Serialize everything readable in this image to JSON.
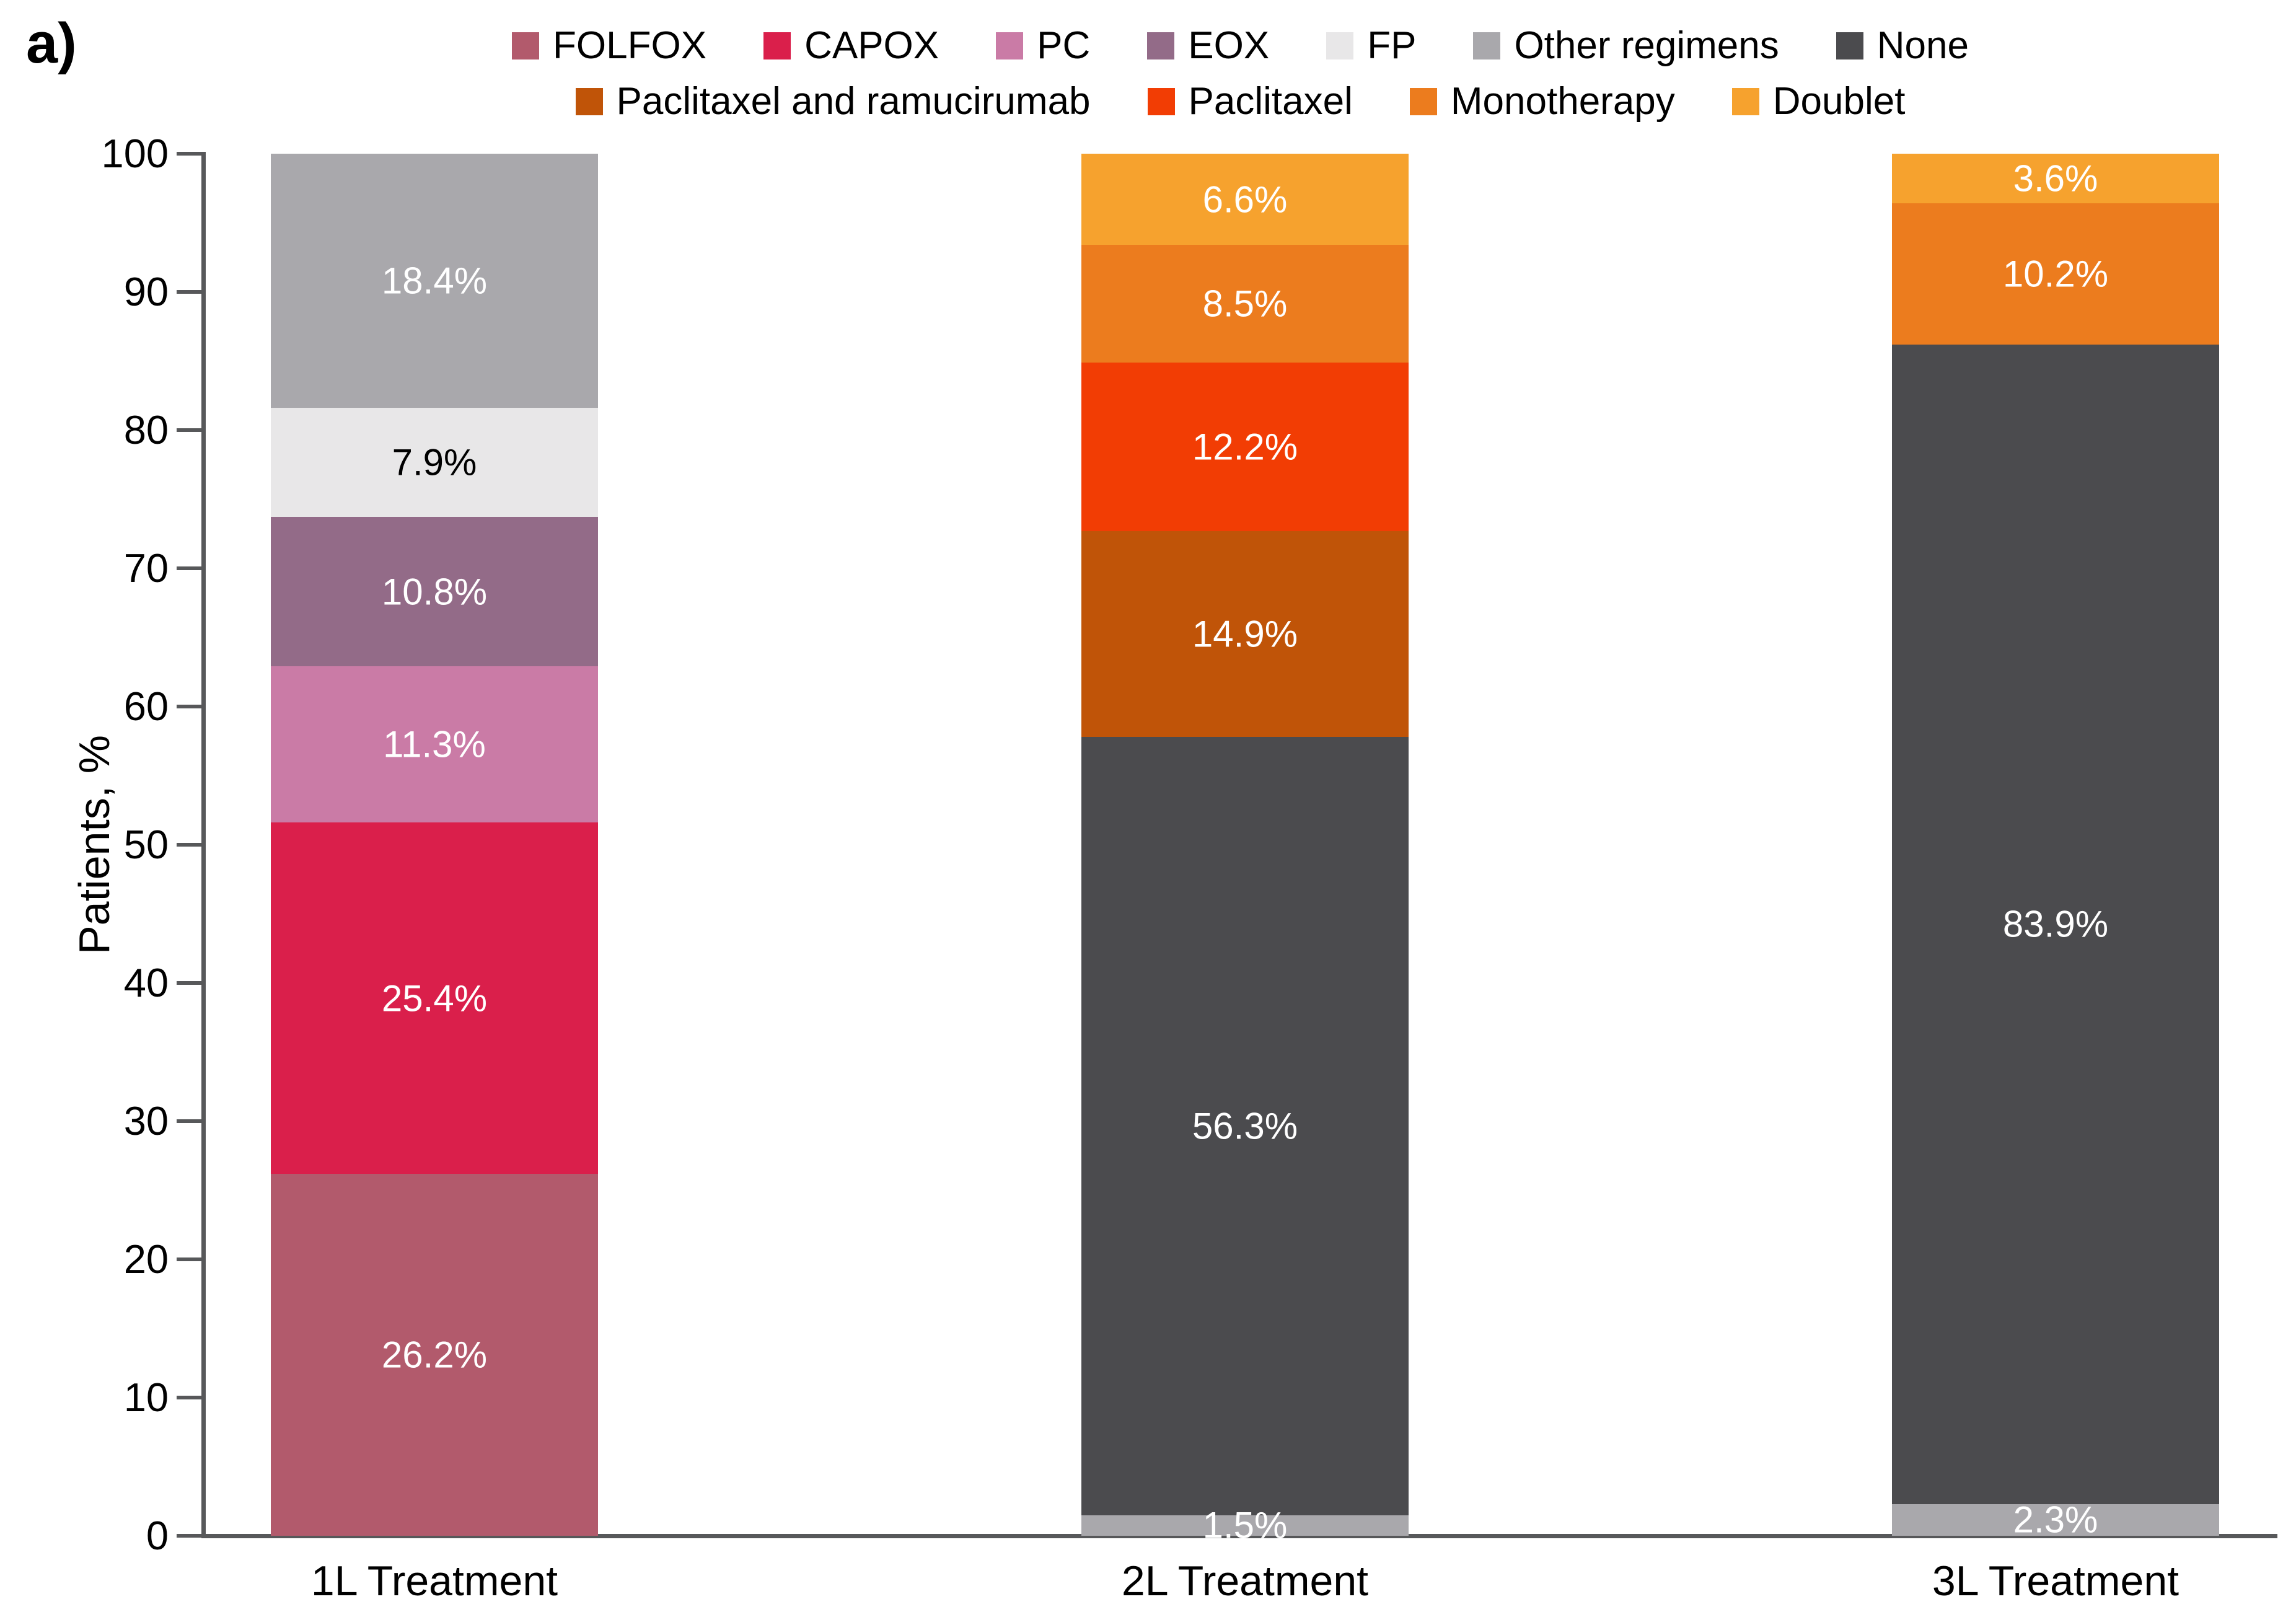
{
  "figure_label": "a)",
  "chart_data": {
    "type": "bar",
    "stacked": true,
    "title": "",
    "xlabel": "",
    "ylabel": "Patients, %",
    "ylim": [
      0,
      100
    ],
    "yticks": [
      0,
      10,
      20,
      30,
      40,
      50,
      60,
      70,
      80,
      90,
      100
    ],
    "grid": false,
    "axis_color": "#57585a",
    "text_color": "#000000",
    "categories": [
      "1L Treatment",
      "2L Treatment",
      "3L Treatment"
    ],
    "legend": {
      "position": "top",
      "rows": [
        [
          "FOLFOX",
          "CAPOX",
          "PC",
          "EOX",
          "FP",
          "Other regimens",
          "None"
        ],
        [
          "Paclitaxel and ramucirumab",
          "Paclitaxel",
          "Monotherapy",
          "Doublet"
        ]
      ]
    },
    "palette": {
      "FOLFOX": "#b25a6c",
      "CAPOX": "#da1f4b",
      "PC": "#ca7ba6",
      "EOX": "#936b88",
      "FP": "#e8e7e8",
      "Other regimens": "#a9a8ac",
      "None": "#4b4b4e",
      "Paclitaxel and ramucirumab": "#c05408",
      "Paclitaxel": "#f23d04",
      "Monotherapy": "#ec7c1e",
      "Doublet": "#f6a22e"
    },
    "stacks": [
      {
        "category": "1L Treatment",
        "segments": [
          {
            "series": "FOLFOX",
            "value": 26.2,
            "label": "26.2%",
            "label_color": "#ffffff"
          },
          {
            "series": "CAPOX",
            "value": 25.4,
            "label": "25.4%",
            "label_color": "#ffffff"
          },
          {
            "series": "PC",
            "value": 11.3,
            "label": "11.3%",
            "label_color": "#ffffff"
          },
          {
            "series": "EOX",
            "value": 10.8,
            "label": "10.8%",
            "label_color": "#ffffff"
          },
          {
            "series": "FP",
            "value": 7.9,
            "label": "7.9%",
            "label_color": "#000000"
          },
          {
            "series": "Other regimens",
            "value": 18.4,
            "label": "18.4%",
            "label_color": "#ffffff"
          }
        ]
      },
      {
        "category": "2L Treatment",
        "segments": [
          {
            "series": "Other regimens",
            "value": 1.5,
            "label": "1.5%",
            "label_color": "#ffffff"
          },
          {
            "series": "None",
            "value": 56.3,
            "label": "56.3%",
            "label_color": "#ffffff"
          },
          {
            "series": "Paclitaxel and ramucirumab",
            "value": 14.9,
            "label": "14.9%",
            "label_color": "#ffffff"
          },
          {
            "series": "Paclitaxel",
            "value": 12.2,
            "label": "12.2%",
            "label_color": "#ffffff"
          },
          {
            "series": "Monotherapy",
            "value": 8.5,
            "label": "8.5%",
            "label_color": "#ffffff"
          },
          {
            "series": "Doublet",
            "value": 6.6,
            "label": "6.6%",
            "label_color": "#ffffff"
          }
        ]
      },
      {
        "category": "3L Treatment",
        "segments": [
          {
            "series": "Other regimens",
            "value": 2.3,
            "label": "2.3%",
            "label_color": "#ffffff"
          },
          {
            "series": "None",
            "value": 83.9,
            "label": "83.9%",
            "label_color": "#ffffff"
          },
          {
            "series": "Monotherapy",
            "value": 10.2,
            "label": "10.2%",
            "label_color": "#ffffff"
          },
          {
            "series": "Doublet",
            "value": 3.6,
            "label": "3.6%",
            "label_color": "#ffffff"
          }
        ]
      }
    ]
  }
}
